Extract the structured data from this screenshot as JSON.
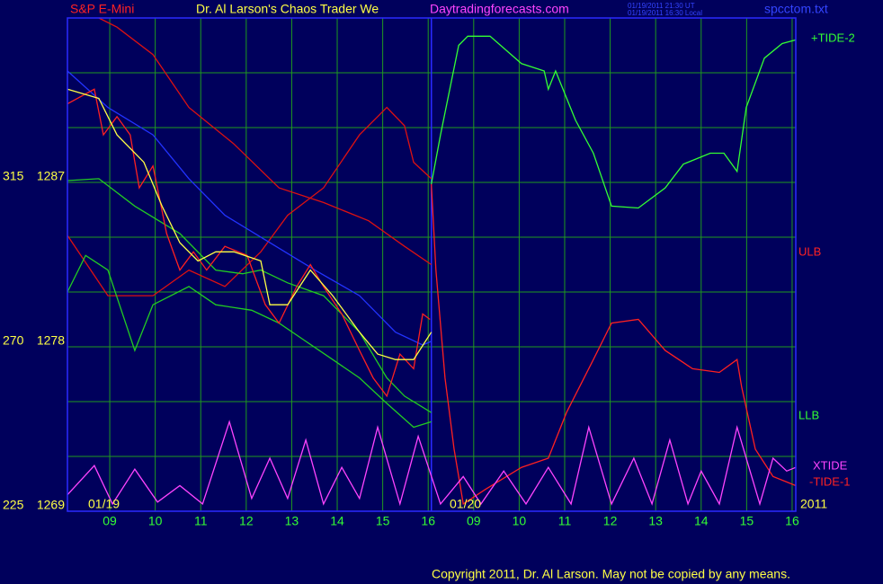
{
  "chart_data": {
    "type": "line",
    "title": "S&P E-Mini",
    "subtitle": "Dr. Al Larson's Chaos Trader We",
    "site": "Daytradingforecasts.com",
    "timestamp_ut": "01/19/2011 21:30 UT",
    "timestamp_local": "01/19/2011 16:30 Local",
    "file": "spcctom.txt",
    "copyright": "Copyright 2011, Dr. Al Larson. May not be copied by any means.",
    "date_labels": [
      "01/19",
      "01/20",
      "2011"
    ],
    "band_labels": [
      "ULB",
      "LLB"
    ],
    "xlim": [
      -0.93,
      15.08
    ],
    "xticks": [
      {
        "value": 0,
        "label": "09"
      },
      {
        "value": 1,
        "label": "10"
      },
      {
        "value": 2,
        "label": "11"
      },
      {
        "value": 3,
        "label": "12"
      },
      {
        "value": 4,
        "label": "13"
      },
      {
        "value": 5,
        "label": "14"
      },
      {
        "value": 6,
        "label": "15"
      },
      {
        "value": 7,
        "label": "16"
      },
      {
        "value": 8,
        "label": "09"
      },
      {
        "value": 9,
        "label": "10"
      },
      {
        "value": 10,
        "label": "11"
      },
      {
        "value": 11,
        "label": "12"
      },
      {
        "value": 12,
        "label": "13"
      },
      {
        "value": 13,
        "label": "14"
      },
      {
        "value": 14,
        "label": "15"
      },
      {
        "value": 15,
        "label": "16"
      }
    ],
    "ylim": [
      1269,
      1296
    ],
    "yticks": [
      1269,
      1278,
      1287
    ],
    "ygrid": [
      1269,
      1272,
      1275,
      1278,
      1281,
      1284,
      1287,
      1290,
      1293,
      1296
    ],
    "y2lim": [
      225,
      360
    ],
    "y2ticks": [
      225,
      270,
      315
    ],
    "day_boundary": 7.07,
    "grid": true,
    "series": [
      {
        "name": "+TIDE-2",
        "color": "#33ff33",
        "x": [
          7.07,
          7.27,
          7.67,
          7.87,
          8.36,
          9.05,
          9.55,
          9.64,
          9.8,
          10.24,
          10.63,
          11.03,
          11.62,
          12.21,
          12.61,
          13.2,
          13.5,
          13.79,
          13.99,
          14.39,
          14.78,
          15.08
        ],
        "values": [
          1286.9,
          1289.6,
          1294.5,
          1295.0,
          1295.0,
          1293.5,
          1293.1,
          1292.1,
          1293.1,
          1290.4,
          1288.6,
          1285.7,
          1285.6,
          1286.7,
          1288.0,
          1288.6,
          1288.6,
          1287.6,
          1291.1,
          1293.8,
          1294.6,
          1294.8
        ]
      },
      {
        "name": "-TIDE-1",
        "color": "#ff2020",
        "x": [
          7.07,
          7.17,
          7.37,
          7.57,
          7.77,
          8.26,
          9.05,
          9.64,
          10.04,
          10.63,
          11.03,
          11.62,
          12.21,
          12.81,
          13.4,
          13.79,
          13.89,
          14.19,
          14.58,
          15.08
        ],
        "values": [
          1286.9,
          1282.2,
          1276.3,
          1272.4,
          1269.4,
          1270.2,
          1271.4,
          1271.9,
          1274.4,
          1277.3,
          1279.3,
          1279.5,
          1277.8,
          1276.8,
          1276.6,
          1277.3,
          1275.8,
          1272.4,
          1270.9,
          1270.4
        ]
      },
      {
        "name": "XTIDE",
        "color": "#ff44ff",
        "x": [
          -0.93,
          -0.34,
          0.06,
          0.55,
          1.05,
          1.54,
          2.04,
          2.63,
          3.12,
          3.52,
          3.91,
          4.31,
          4.7,
          5.1,
          5.49,
          5.89,
          6.38,
          6.78,
          7.27,
          7.77,
          8.16,
          8.66,
          9.15,
          9.64,
          10.14,
          10.53,
          11.03,
          11.52,
          11.92,
          12.31,
          12.71,
          13.0,
          13.4,
          13.79,
          14.29,
          14.58,
          14.88,
          15.08
        ],
        "values": [
          1269.9,
          1271.5,
          1269.4,
          1271.3,
          1269.5,
          1270.4,
          1269.4,
          1273.9,
          1269.7,
          1271.9,
          1269.7,
          1272.9,
          1269.4,
          1271.4,
          1269.7,
          1273.6,
          1269.4,
          1273.1,
          1269.4,
          1270.9,
          1269.4,
          1271.2,
          1269.4,
          1271.4,
          1269.4,
          1273.6,
          1269.4,
          1271.9,
          1269.4,
          1272.9,
          1269.4,
          1271.2,
          1269.4,
          1273.6,
          1269.4,
          1271.9,
          1271.2,
          1271.4
        ]
      },
      {
        "color": "#dd1111",
        "x": [
          -0.24,
          0.16,
          0.95,
          1.74,
          2.73,
          3.72,
          4.7,
          5.69,
          6.48,
          7.07
        ],
        "values": [
          1296.0,
          1295.5,
          1294.0,
          1291.1,
          1289.1,
          1286.7,
          1285.9,
          1284.9,
          1283.5,
          1282.5
        ]
      },
      {
        "color": "#dd1111",
        "x": [
          -0.93,
          -0.04,
          0.95,
          1.74,
          2.53,
          3.32,
          3.91,
          4.7,
          5.49,
          6.09,
          6.48,
          6.68,
          7.07
        ],
        "values": [
          1284.1,
          1280.8,
          1280.8,
          1282.2,
          1281.3,
          1283.2,
          1285.2,
          1286.7,
          1289.6,
          1291.1,
          1290.1,
          1288.1,
          1287.2
        ]
      },
      {
        "color": "#22cc22",
        "x": [
          -0.93,
          -0.24,
          0.55,
          1.54,
          2.33,
          2.92,
          3.32,
          3.91,
          4.7,
          5.49,
          6.09,
          6.48,
          7.07
        ],
        "values": [
          1287.1,
          1287.2,
          1285.7,
          1284.2,
          1282.2,
          1282.0,
          1282.2,
          1281.5,
          1280.8,
          1278.8,
          1276.3,
          1275.3,
          1274.4
        ]
      },
      {
        "color": "#22cc22",
        "x": [
          -0.93,
          -0.53,
          -0.04,
          0.55,
          0.95,
          1.74,
          2.33,
          3.12,
          3.72,
          4.31,
          4.9,
          5.49,
          6.09,
          6.68,
          7.07
        ],
        "values": [
          1281.0,
          1283.0,
          1282.2,
          1277.8,
          1280.3,
          1281.3,
          1280.3,
          1280.0,
          1279.3,
          1278.3,
          1277.3,
          1276.3,
          1274.9,
          1273.6,
          1273.9
        ]
      },
      {
        "color": "#2233ff",
        "x": [
          -0.93,
          -0.04,
          0.95,
          1.74,
          2.53,
          3.52,
          4.51,
          5.49,
          6.28,
          6.88,
          7.07
        ],
        "values": [
          1293.1,
          1291.1,
          1289.6,
          1287.2,
          1285.2,
          1283.7,
          1282.2,
          1280.8,
          1278.8,
          1278.1,
          1278.3
        ]
      },
      {
        "color": "#ff2020",
        "x": [
          -0.93,
          -0.34,
          -0.14,
          0.16,
          0.45,
          0.65,
          0.95,
          1.25,
          1.54,
          1.84,
          2.13,
          2.53,
          3.02,
          3.42,
          3.72,
          4.11,
          4.41,
          4.7,
          5.1,
          5.49,
          5.79,
          6.09,
          6.38,
          6.68,
          6.88,
          7.04
        ],
        "values": [
          1291.3,
          1292.1,
          1289.6,
          1290.6,
          1289.6,
          1286.7,
          1287.9,
          1284.2,
          1282.2,
          1283.2,
          1282.2,
          1283.5,
          1283.0,
          1280.3,
          1279.3,
          1281.3,
          1282.5,
          1281.3,
          1279.8,
          1277.8,
          1276.3,
          1275.3,
          1277.6,
          1276.8,
          1279.8,
          1279.5
        ]
      },
      {
        "color": "#ffff44",
        "x": [
          -0.93,
          -0.24,
          0.16,
          0.75,
          1.15,
          1.54,
          1.94,
          2.33,
          2.73,
          3.32,
          3.52,
          3.91,
          4.41,
          4.9,
          5.49,
          5.89,
          6.28,
          6.68,
          7.07
        ],
        "values": [
          1292.1,
          1291.6,
          1289.6,
          1288.1,
          1285.7,
          1283.7,
          1282.7,
          1283.2,
          1283.2,
          1282.7,
          1280.3,
          1280.3,
          1282.2,
          1280.8,
          1278.8,
          1277.6,
          1277.3,
          1277.3,
          1278.8
        ]
      }
    ]
  }
}
